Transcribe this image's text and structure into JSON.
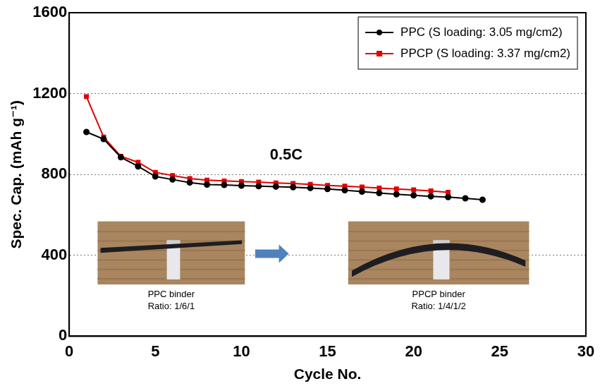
{
  "chart_data": {
    "type": "line",
    "x_label": "Cycle No.",
    "y_label": "Spec. Cap. (mAh g⁻¹)",
    "x": [
      1,
      2,
      3,
      4,
      5,
      6,
      7,
      8,
      9,
      10,
      11,
      12,
      13,
      14,
      15,
      16,
      17,
      18,
      19,
      20,
      21,
      22,
      23,
      24
    ],
    "series": [
      {
        "name": "PPC (S loading: 3.05 mg/cm2)",
        "color": "#000000",
        "marker": "circle",
        "line_style": "solid",
        "values": [
          1010,
          975,
          885,
          840,
          790,
          775,
          760,
          750,
          748,
          745,
          742,
          740,
          737,
          733,
          728,
          722,
          715,
          708,
          702,
          697,
          692,
          688,
          682,
          675
        ]
      },
      {
        "name": "PPCP (S loading: 3.37 mg/cm2)",
        "color": "#e00000",
        "marker": "square",
        "line_style": "solid",
        "values": [
          1185,
          985,
          890,
          860,
          810,
          795,
          780,
          772,
          768,
          765,
          762,
          758,
          755,
          751,
          746,
          742,
          738,
          733,
          728,
          724,
          719,
          712,
          null,
          null
        ]
      }
    ],
    "xlim": [
      0,
      30
    ],
    "xticks": [
      0,
      5,
      10,
      15,
      20,
      25,
      30
    ],
    "ylim": [
      0,
      1600
    ],
    "yticks": [
      0,
      400,
      800,
      1200,
      1600
    ],
    "grid": true,
    "legend": "upper right",
    "annotations": [
      "0.5C"
    ],
    "inset_captions": [
      [
        "PPC binder",
        "Ratio: 1/6/1"
      ],
      [
        "PPCP binder",
        "Ratio: 1/4/1/2"
      ]
    ]
  }
}
